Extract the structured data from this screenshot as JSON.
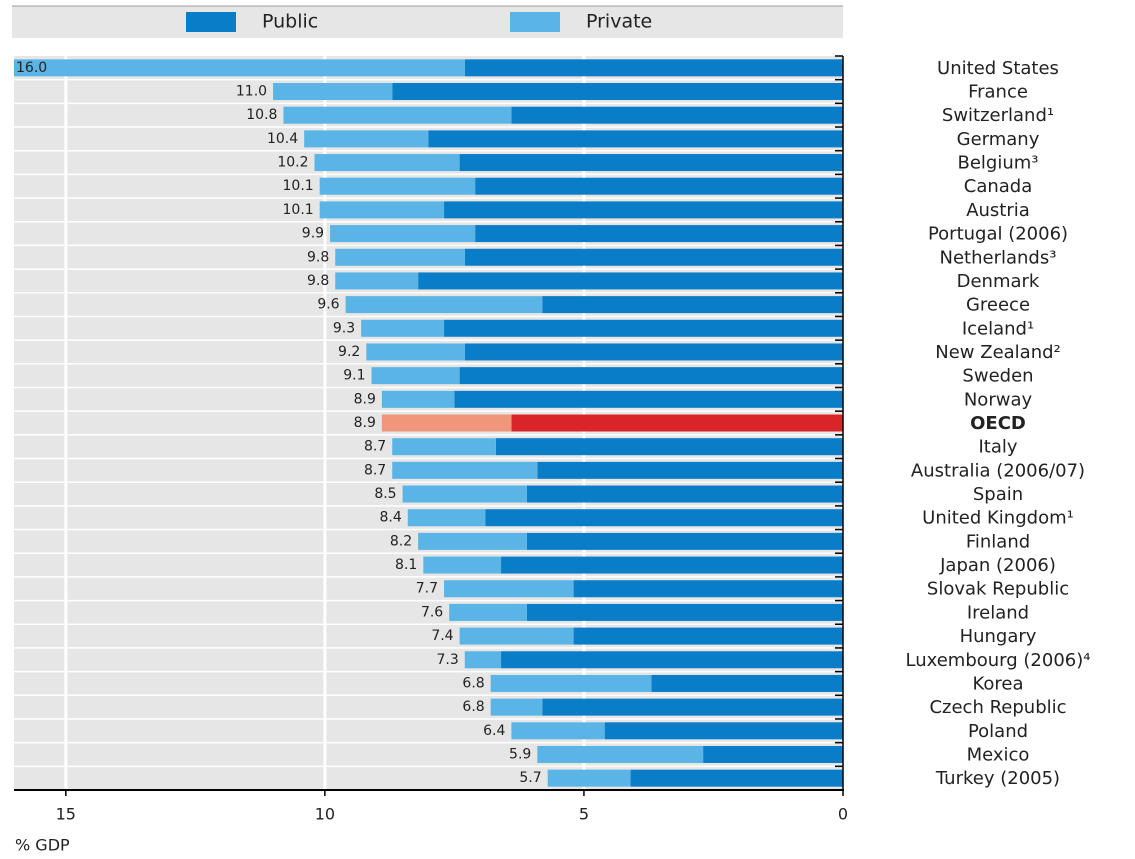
{
  "chart_data": {
    "type": "stacked-barh",
    "xlabel": "% GDP",
    "categories": [
      "United States",
      "France",
      "Switzerland¹",
      "Germany",
      "Belgium³",
      "Canada",
      "Austria",
      "Portugal (2006)",
      "Netherlands³",
      "Denmark",
      "Greece",
      "Iceland¹",
      "New Zealand²",
      "Sweden",
      "Norway",
      "OECD",
      "Italy",
      "Australia (2006/07)",
      "Spain",
      "United Kingdom¹",
      "Finland",
      "Japan (2006)",
      "Slovak Republic",
      "Ireland",
      "Hungary",
      "Luxembourg (2006)⁴",
      "Korea",
      "Czech Republic",
      "Poland",
      "Mexico",
      "Turkey (2005)"
    ],
    "series": [
      {
        "name": "Public",
        "color": "#0a7dc8",
        "values": [
          7.3,
          8.7,
          6.4,
          8.0,
          7.4,
          7.1,
          7.7,
          7.1,
          7.3,
          8.2,
          5.8,
          7.7,
          7.3,
          7.4,
          7.5,
          6.4,
          6.7,
          5.9,
          6.1,
          6.9,
          6.1,
          6.6,
          5.2,
          6.1,
          5.2,
          6.6,
          3.7,
          5.8,
          4.6,
          2.7,
          4.1
        ]
      },
      {
        "name": "Private",
        "color": "#5ab4e5",
        "values": [
          8.7,
          2.3,
          4.4,
          2.4,
          2.8,
          3.0,
          2.4,
          2.8,
          2.5,
          1.6,
          3.8,
          1.6,
          1.9,
          1.7,
          1.4,
          2.5,
          2.0,
          2.8,
          2.4,
          1.5,
          2.1,
          1.5,
          2.5,
          1.5,
          2.2,
          0.7,
          3.1,
          1.0,
          1.8,
          3.2,
          1.6
        ]
      }
    ],
    "totals": [
      16,
      11,
      10.8,
      10.4,
      10.2,
      10.1,
      10.1,
      9.9,
      9.8,
      9.8,
      9.6,
      9.3,
      9.2,
      9.1,
      8.9,
      8.9,
      8.7,
      8.7,
      8.5,
      8.4,
      8.2,
      8.1,
      7.7,
      7.6,
      7.4,
      7.3,
      6.8,
      6.8,
      6.4,
      5.9,
      5.7
    ],
    "total_labels": [
      "16.0",
      "11.0",
      "10.8",
      "10.4",
      "10.2",
      "10.1",
      "10.1",
      "9.9",
      "9.8",
      "9.8",
      "9.6",
      "9.3",
      "9.2",
      "9.1",
      "8.9",
      "8.9",
      "8.7",
      "8.7",
      "8.5",
      "8.4",
      "8.2",
      "8.1",
      "7.7",
      "7.6",
      "7.4",
      "7.3",
      "6.8",
      "6.8",
      "6.4",
      "5.9",
      "5.7"
    ],
    "highlight": {
      "index": 15,
      "colors": [
        "#d9252a",
        "#f0967a"
      ]
    },
    "xlim": [
      16,
      0
    ],
    "xticks": [
      15,
      10,
      5,
      0
    ],
    "grid": true
  }
}
